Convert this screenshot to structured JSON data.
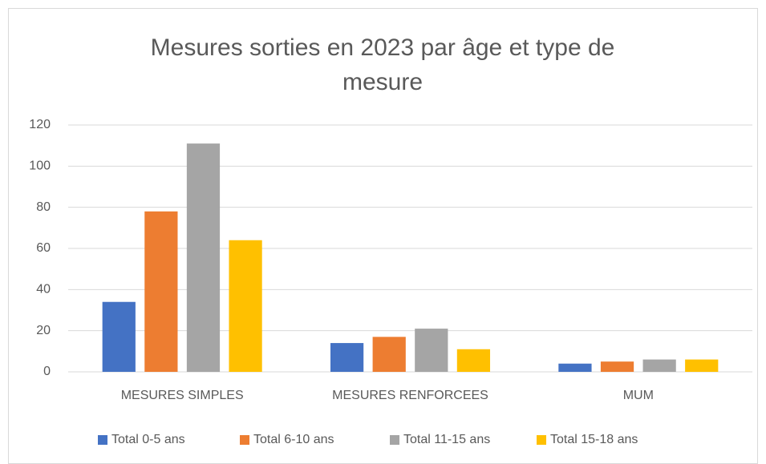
{
  "chart_data": {
    "type": "bar",
    "title": "Mesures sorties en 2023 par âge et type de mesure",
    "categories": [
      "MESURES SIMPLES",
      "MESURES RENFORCEES",
      "MUM"
    ],
    "series": [
      {
        "name": "Total 0-5 ans",
        "color": "#4472c4",
        "values": [
          34,
          14,
          4
        ]
      },
      {
        "name": "Total 6-10 ans",
        "color": "#ed7d31",
        "values": [
          78,
          17,
          5
        ]
      },
      {
        "name": "Total 11-15 ans",
        "color": "#a5a5a5",
        "values": [
          111,
          21,
          6
        ]
      },
      {
        "name": "Total 15-18 ans",
        "color": "#ffc000",
        "values": [
          64,
          11,
          6
        ]
      }
    ],
    "ylim": [
      0,
      120
    ],
    "yticks": [
      0,
      20,
      40,
      60,
      80,
      100,
      120
    ],
    "grid": true,
    "legend": "bottom"
  }
}
